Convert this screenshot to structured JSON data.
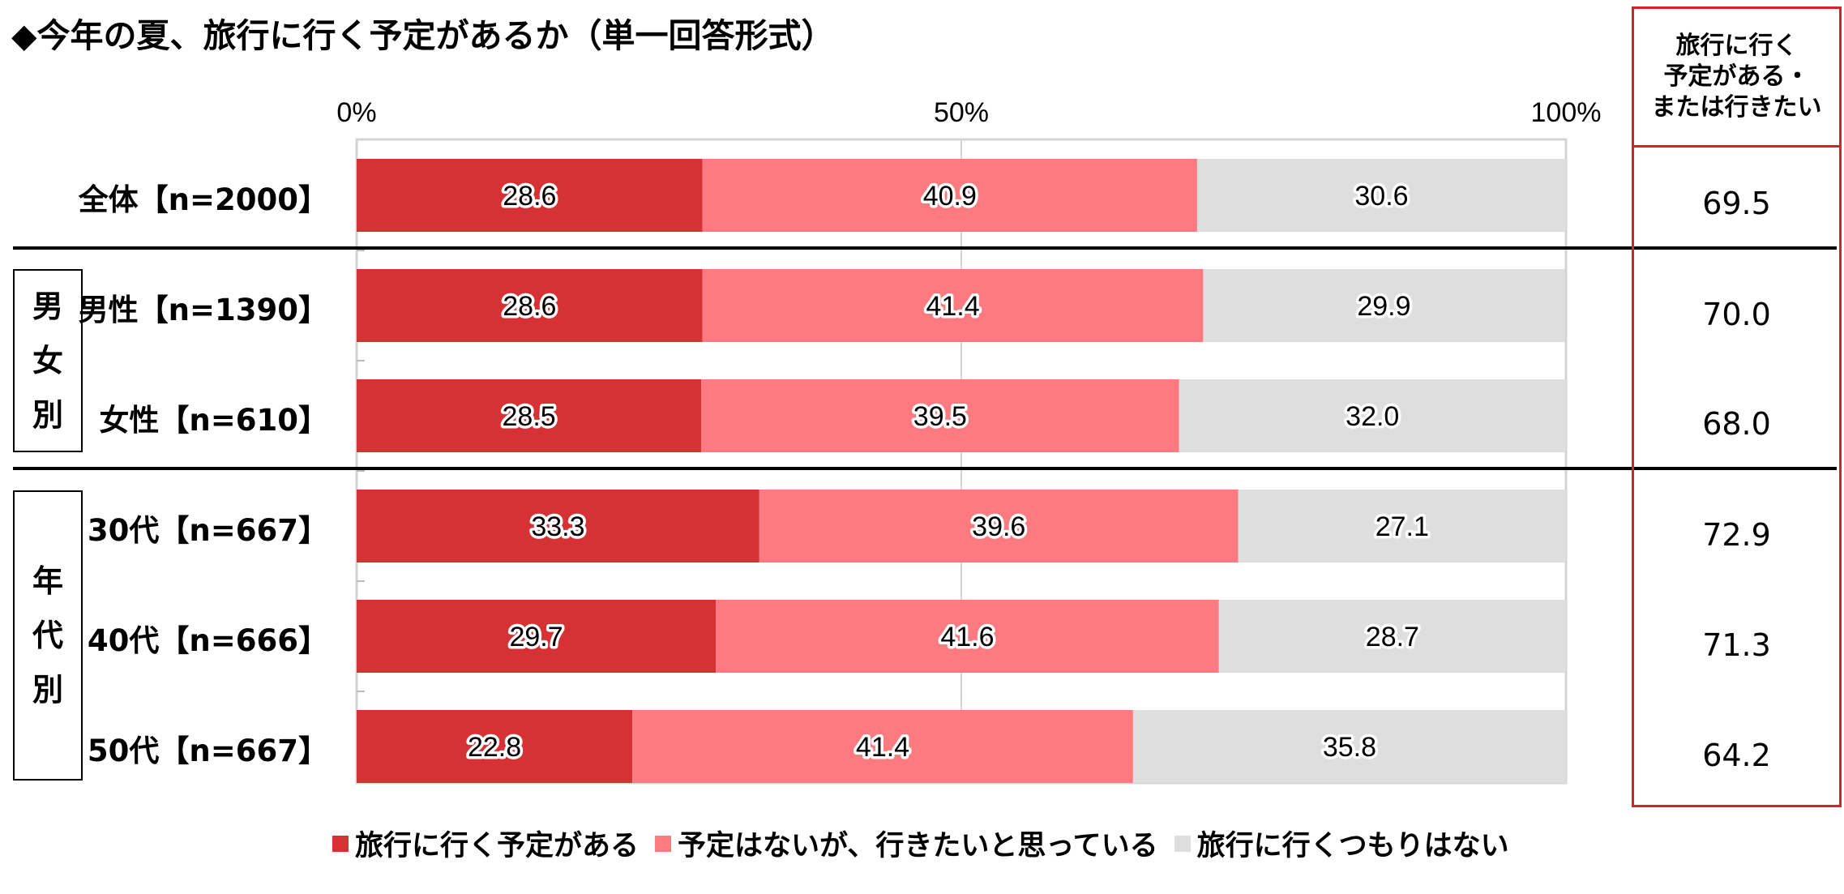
{
  "title": "◆今年の夏、旅行に行く予定があるか（単一回答形式）",
  "colors": {
    "plan": "#d63235",
    "want": "#fd7b80",
    "none": "#dedede",
    "summary_border": "#d6232b"
  },
  "groups": {
    "gender": [
      "男",
      "女",
      "別"
    ],
    "age": [
      "年",
      "代",
      "別"
    ]
  },
  "summary": {
    "header_lines": [
      "旅行に行く",
      "予定がある・",
      "または行きたい"
    ],
    "values": [
      "69.5",
      "70.0",
      "68.0",
      "72.9",
      "71.3",
      "64.2"
    ]
  },
  "legend": [
    {
      "label": "旅行に行く予定がある",
      "color_key": "plan"
    },
    {
      "label": "予定はないが、行きたいと思っている",
      "color_key": "want"
    },
    {
      "label": "旅行に行くつもりはない",
      "color_key": "none"
    }
  ],
  "chart_data": {
    "type": "bar",
    "orientation": "horizontal",
    "stacked": true,
    "title": "◆今年の夏、旅行に行く予定があるか（単一回答形式）",
    "categories": [
      "全体【n=2000】",
      "男性【n=1390】",
      "女性【n=610】",
      "30代【n=667】",
      "40代【n=666】",
      "50代【n=667】"
    ],
    "series": [
      {
        "name": "旅行に行く予定がある",
        "values": [
          28.6,
          28.6,
          28.5,
          33.3,
          29.7,
          22.8
        ]
      },
      {
        "name": "予定はないが、行きたいと思っている",
        "values": [
          40.9,
          41.4,
          39.5,
          39.6,
          41.6,
          41.4
        ]
      },
      {
        "name": "旅行に行くつもりはない",
        "values": [
          30.6,
          29.9,
          32.0,
          27.1,
          28.7,
          35.8
        ]
      }
    ],
    "xlim": [
      0,
      100
    ],
    "xticks": [
      "0%",
      "50%",
      "100%"
    ],
    "legend_position": "bottom"
  }
}
